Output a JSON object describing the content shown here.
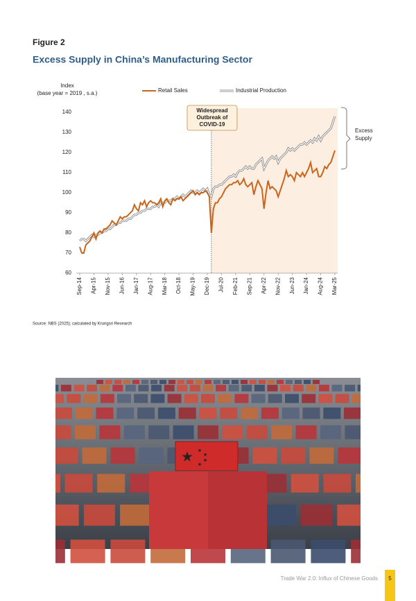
{
  "figure_label": "Figure 2",
  "chart_data": {
    "type": "line",
    "title": "Excess Supply in China’s Manufacturing Sector",
    "y_label_lines": [
      "Index",
      "(base year = 2019 , s.a.)"
    ],
    "annotation_lines": [
      "Widespread",
      "Outbreak of",
      "COVID-19"
    ],
    "bracket_label_lines": [
      "Excess",
      "Supply"
    ],
    "categories": [
      "Sep-14",
      null,
      null,
      null,
      null,
      null,
      null,
      "Apr-15",
      null,
      null,
      null,
      null,
      null,
      null,
      "Nov-15",
      null,
      null,
      null,
      null,
      null,
      null,
      "Jun-16",
      null,
      null,
      null,
      null,
      null,
      null,
      "Jan-17",
      null,
      null,
      null,
      null,
      null,
      null,
      "Aug-17",
      null,
      null,
      null,
      null,
      null,
      null,
      "Mar-18",
      null,
      null,
      null,
      null,
      null,
      null,
      "Oct-18",
      null,
      null,
      null,
      null,
      null,
      null,
      "May-19",
      null,
      null,
      null,
      null,
      null,
      null,
      "Dec-19",
      null,
      null,
      null,
      null,
      null,
      null,
      "Jul-20",
      null,
      null,
      null,
      null,
      null,
      null,
      "Feb-21",
      null,
      null,
      null,
      null,
      null,
      null,
      "Sep-21",
      null,
      null,
      null,
      null,
      null,
      null,
      "Apr-22",
      null,
      null,
      null,
      null,
      null,
      null,
      "Nov-22",
      null,
      null,
      null,
      null,
      null,
      null,
      "Jun-23",
      null,
      null,
      null,
      null,
      null,
      null,
      "Jan-24",
      null,
      null,
      null,
      null,
      null,
      null,
      "Aug-24",
      null,
      null,
      null,
      null,
      null,
      null,
      "Mar-25"
    ],
    "series": [
      {
        "name": "Retail Sales",
        "color": "#c8651b",
        "values": [
          73,
          70,
          70,
          74,
          75,
          76,
          78,
          80,
          77,
          80,
          81,
          80,
          82,
          82,
          83,
          84,
          86,
          85,
          84,
          86,
          88,
          87,
          88,
          88,
          89,
          90,
          91,
          94,
          92,
          91,
          95,
          94,
          96,
          93,
          95,
          96,
          95,
          95,
          94,
          95,
          97,
          93,
          96,
          97,
          95,
          94,
          97,
          96,
          97,
          97,
          98,
          96,
          97,
          98,
          99,
          100,
          101,
          99,
          100,
          99,
          100,
          100,
          101,
          100,
          98,
          80,
          92,
          95,
          95,
          97,
          98,
          100,
          102,
          103,
          104,
          104,
          105,
          105,
          106,
          104,
          105,
          107,
          104,
          103,
          104,
          105,
          99,
          103,
          106,
          104,
          102,
          92,
          100,
          106,
          102,
          103,
          102,
          101,
          98,
          101,
          104,
          107,
          111,
          108,
          109,
          108,
          106,
          110,
          109,
          108,
          110,
          108,
          110,
          112,
          115,
          110,
          111,
          112,
          108,
          108,
          110,
          113,
          112,
          114,
          115,
          118,
          121
        ]
      },
      {
        "name": "Industrial Production",
        "color": "#8a8a8a",
        "values": [
          76,
          77,
          77,
          76,
          77,
          78,
          79,
          78,
          79,
          79,
          80,
          80,
          81,
          81,
          82,
          82,
          83,
          84,
          84,
          85,
          85,
          86,
          86,
          86,
          87,
          87,
          88,
          89,
          89,
          90,
          90,
          91,
          91,
          92,
          92,
          92,
          93,
          93,
          94,
          93,
          95,
          95,
          95,
          96,
          96,
          96,
          97,
          97,
          98,
          97,
          98,
          99,
          98,
          99,
          100,
          101,
          100,
          100,
          101,
          100,
          101,
          102,
          101,
          102,
          99,
          98,
          102,
          103,
          103,
          104,
          104,
          105,
          106,
          107,
          108,
          108,
          109,
          108,
          110,
          111,
          111,
          112,
          113,
          112,
          113,
          112,
          112,
          114,
          115,
          116,
          117,
          112,
          114,
          116,
          117,
          118,
          117,
          118,
          115,
          117,
          118,
          119,
          120,
          122,
          121,
          122,
          121,
          122,
          123,
          124,
          124,
          125,
          124,
          125,
          126,
          125,
          127,
          126,
          128,
          126,
          128,
          129,
          130,
          131,
          132,
          135,
          138
        ]
      }
    ],
    "ylim": [
      60,
      140
    ],
    "yticks": [
      60,
      70,
      80,
      90,
      100,
      110,
      120,
      130,
      140
    ]
  },
  "source": "Source: NBS (2025); calculated by Krungsri Research",
  "footer": {
    "title": "Trade War 2.0: Influx of Chinese Goods",
    "page": "5"
  }
}
